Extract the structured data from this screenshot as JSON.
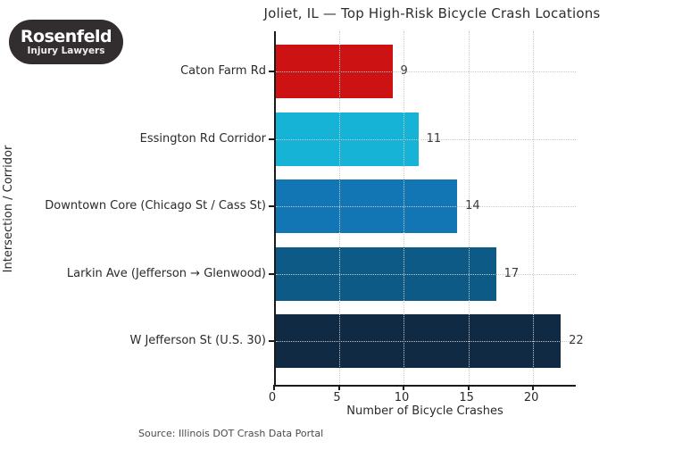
{
  "logo": {
    "line1": "Rosenfeld",
    "line2": "Injury Lawyers",
    "bg_color": "#322e2f",
    "text_color": "#ffffff"
  },
  "chart_data": {
    "type": "bar",
    "orientation": "horizontal",
    "title": "Joliet, IL — Top High-Risk Bicycle Crash Locations",
    "categories": [
      "Caton Farm Rd",
      "Essington Rd Corridor",
      "Downtown Core (Chicago St / Cass St)",
      "Larkin Ave (Jefferson → Glenwood)",
      "W Jefferson St (U.S. 30)"
    ],
    "values": [
      9,
      11,
      14,
      17,
      22
    ],
    "bar_colors": [
      "#cc1212",
      "#17b3d6",
      "#1276b4",
      "#0d5a87",
      "#112a44"
    ],
    "xlabel": "Number of Bicycle Crashes",
    "ylabel": "Intersection / Corridor",
    "xticks": [
      0,
      5,
      10,
      15,
      20
    ],
    "xlim": [
      0,
      23.3
    ],
    "grid": {
      "style": "dotted",
      "color": "#c9c9c9",
      "axes": "both"
    },
    "legend": "none",
    "source": "Source: Illinois DOT Crash Data Portal"
  }
}
